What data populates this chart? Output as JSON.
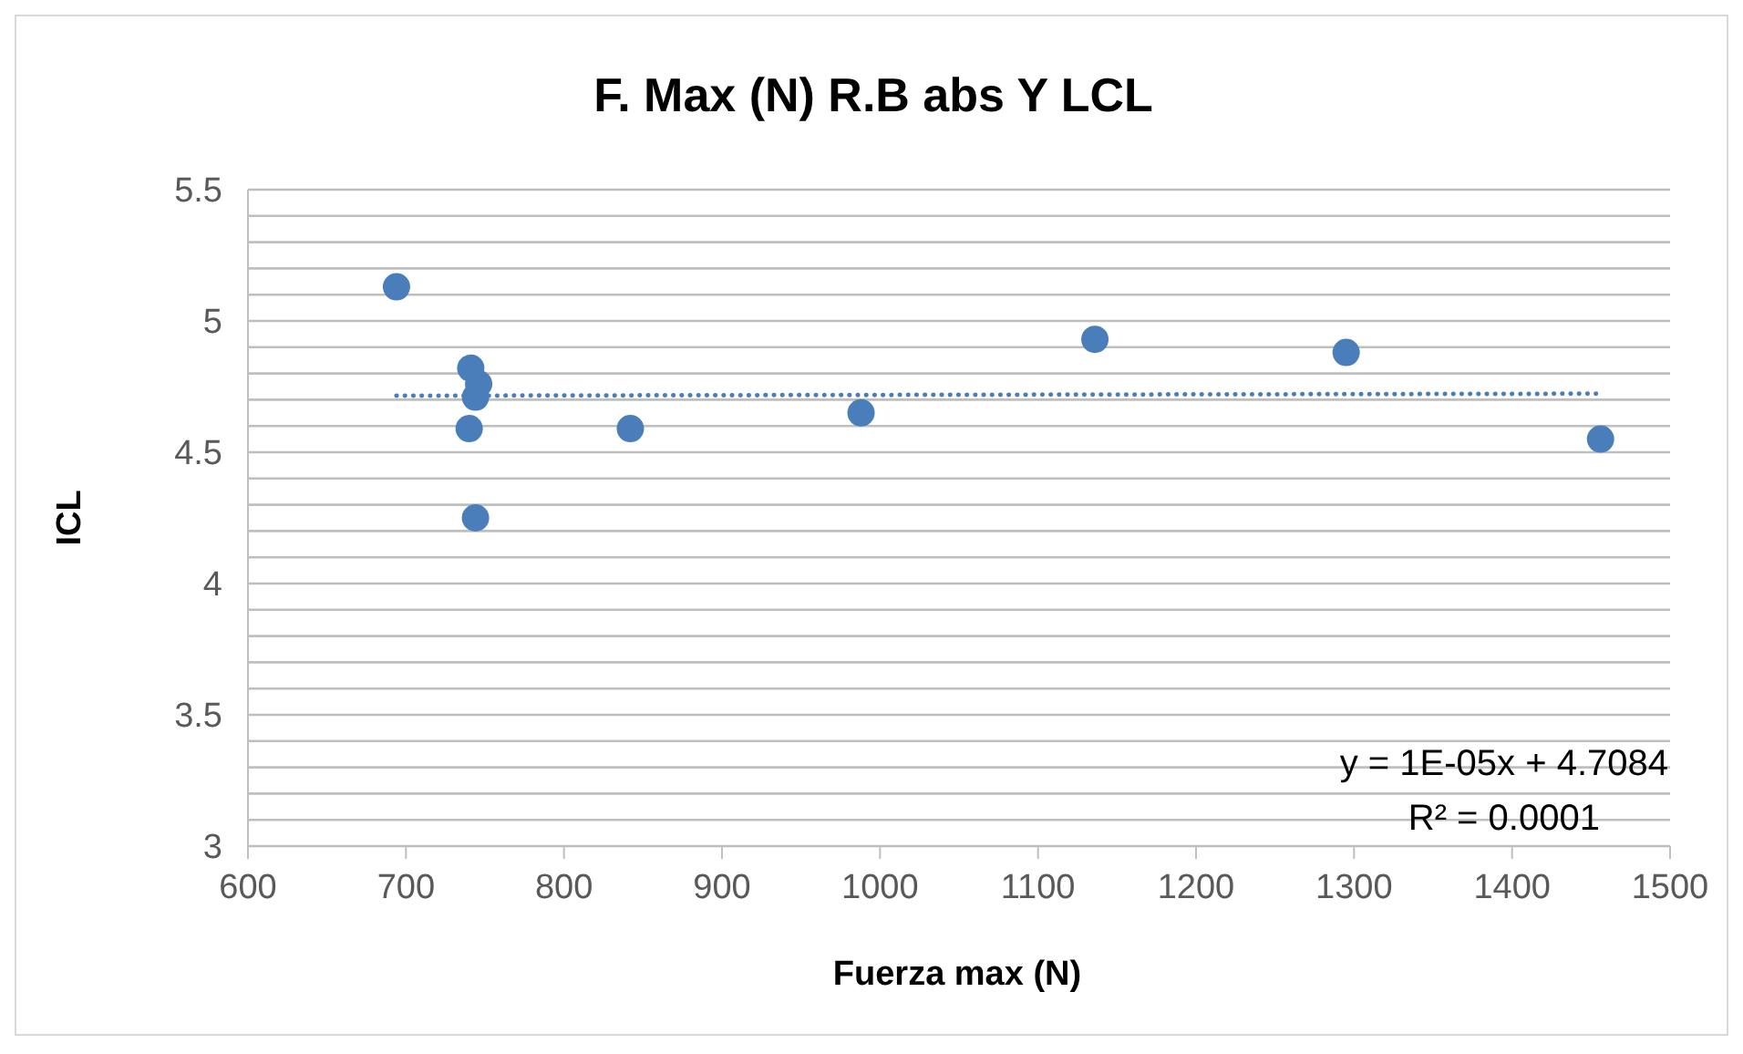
{
  "chart_data": {
    "type": "scatter",
    "title": "F. Max (N) R.B abs Y LCL",
    "xlabel": "Fuerza max (N)",
    "ylabel": "ICL",
    "series": [
      {
        "color": "#4a7ebb",
        "marker": "circle",
        "x": [
          694,
          741,
          746,
          744,
          740,
          744,
          842,
          988,
          1136,
          1295,
          1456
        ],
        "values": [
          5.13,
          4.82,
          4.76,
          4.71,
          4.59,
          4.25,
          4.59,
          4.65,
          4.93,
          4.88,
          4.55
        ]
      },
      {
        "type": "line",
        "color": "#4a7ebb",
        "line_style": "dotted",
        "marker": "none",
        "x": [
          694,
          1456
        ],
        "values": [
          4.715,
          4.723
        ]
      }
    ],
    "xlim": [
      600,
      1500
    ],
    "xticks": [
      600,
      700,
      800,
      900,
      1000,
      1100,
      1200,
      1300,
      1400,
      1500
    ],
    "ylim": [
      3,
      5.5
    ],
    "yticks": [
      3,
      {
        "value": 3.1,
        "label": null
      },
      {
        "value": 3.2,
        "label": null
      },
      {
        "value": 3.3,
        "label": null
      },
      {
        "value": 3.4,
        "label": null
      },
      3.5,
      {
        "value": 3.6,
        "label": null
      },
      {
        "value": 3.7,
        "label": null
      },
      {
        "value": 3.8,
        "label": null
      },
      {
        "value": 3.9,
        "label": null
      },
      4,
      {
        "value": 4.1,
        "label": null
      },
      {
        "value": 4.2,
        "label": null
      },
      {
        "value": 4.3,
        "label": null
      },
      {
        "value": 4.4,
        "label": null
      },
      4.5,
      {
        "value": 4.6,
        "label": null
      },
      {
        "value": 4.7,
        "label": null
      },
      {
        "value": 4.8,
        "label": null
      },
      {
        "value": 4.9,
        "label": null
      },
      5,
      {
        "value": 5.1,
        "label": null
      },
      {
        "value": 5.2,
        "label": null
      },
      {
        "value": 5.3,
        "label": null
      },
      {
        "value": 5.4,
        "label": null
      },
      5.5
    ],
    "grid": "y",
    "legend": false,
    "annotations": [
      "y = 1E-05x + 4.7084",
      "R² = 0.0001"
    ]
  }
}
